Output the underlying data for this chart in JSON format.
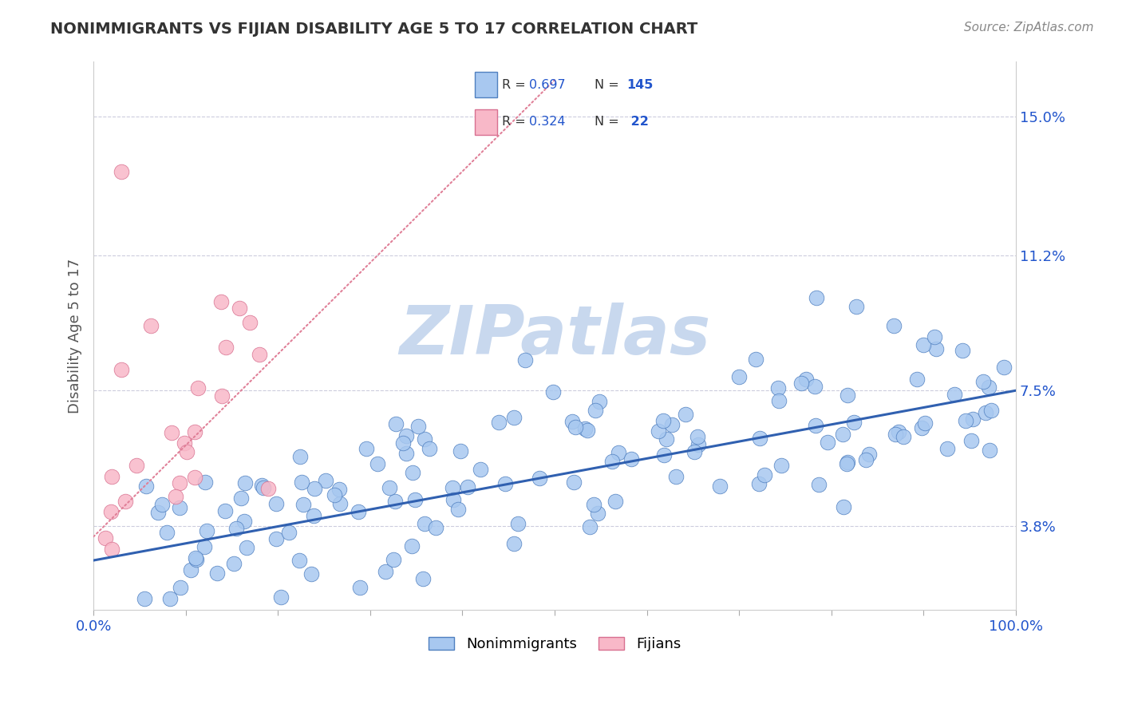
{
  "title": "NONIMMIGRANTS VS FIJIAN DISABILITY AGE 5 TO 17 CORRELATION CHART",
  "source_text": "Source: ZipAtlas.com",
  "ylabel": "Disability Age 5 to 17",
  "xlim": [
    0.0,
    100.0
  ],
  "ylim": [
    1.5,
    16.5
  ],
  "yticks": [
    3.8,
    7.5,
    11.2,
    15.0
  ],
  "blue_R": 0.697,
  "blue_N": 145,
  "pink_R": 0.324,
  "pink_N": 22,
  "blue_color": "#A8C8F0",
  "blue_edge_color": "#5080C0",
  "pink_color": "#F8B8C8",
  "pink_edge_color": "#D87090",
  "blue_line_color": "#3060B0",
  "pink_line_color": "#E08098",
  "watermark_color": "#C8D8EE",
  "background_color": "#FFFFFF",
  "title_color": "#333333",
  "axis_label_color": "#555555",
  "tick_label_color": "#2255CC",
  "grid_color": "#CCCCDD",
  "legend_text_color": "#333333",
  "legend_num_color": "#2255CC",
  "blue_line_x0": 0.0,
  "blue_line_y0": 2.85,
  "blue_line_x1": 100.0,
  "blue_line_y1": 7.5,
  "pink_line_x0": 0.0,
  "pink_line_y0": 3.5,
  "pink_line_x1": 50.0,
  "pink_line_y1": 16.0
}
